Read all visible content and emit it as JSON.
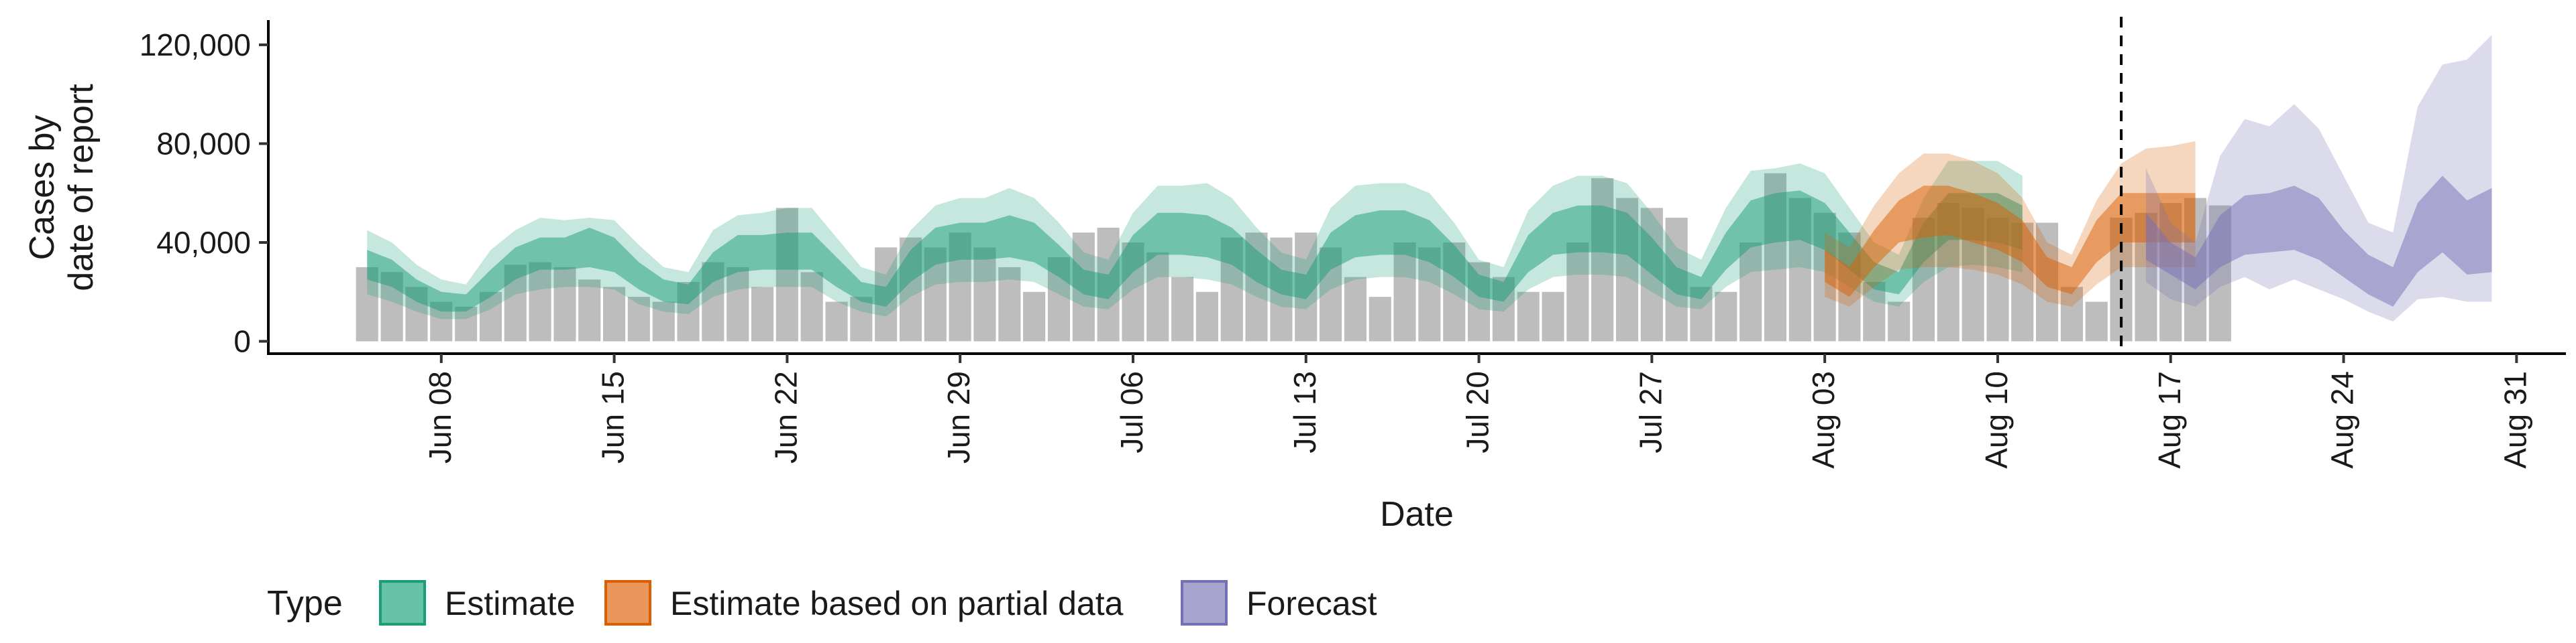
{
  "chart_data": {
    "type": "area",
    "xlabel": "Date",
    "ylabel_lines": [
      "Cases by",
      "date of report"
    ],
    "x_range": [
      "2020-06-01",
      "2020-09-02"
    ],
    "ylim": [
      -5000,
      130000
    ],
    "y_ticks": [
      0,
      40000,
      80000,
      120000
    ],
    "y_tick_labels": [
      "0",
      "40,000",
      "80,000",
      "120,000"
    ],
    "x_ticks": [
      "2020-06-08",
      "2020-06-15",
      "2020-06-22",
      "2020-06-29",
      "2020-07-06",
      "2020-07-13",
      "2020-07-20",
      "2020-07-27",
      "2020-08-03",
      "2020-08-10",
      "2020-08-17",
      "2020-08-24",
      "2020-08-31"
    ],
    "x_tick_labels": [
      "Jun 08",
      "Jun 15",
      "Jun 22",
      "Jun 29",
      "Jul 06",
      "Jul 13",
      "Jul 20",
      "Jul 27",
      "Aug 03",
      "Aug 10",
      "Aug 17",
      "Aug 24",
      "Aug 31"
    ],
    "vline_date": "2020-08-15",
    "grid": false,
    "legend": {
      "title": "Type",
      "position": "bottom",
      "items": [
        {
          "label": "Estimate",
          "fill": "#66c2a5",
          "border": "#1b9e77"
        },
        {
          "label": "Estimate based on partial data",
          "fill": "#e8965a",
          "border": "#d95f02"
        },
        {
          "label": "Forecast",
          "fill": "#a8a4d0",
          "border": "#7570b3"
        }
      ]
    },
    "colors": {
      "bars": "#bdbdbd",
      "Estimate": "#1b9e77",
      "Estimate based on partial data": "#d95f02",
      "Forecast": "#7570b3"
    },
    "reported_cases": {
      "start_date": "2020-06-05",
      "values": [
        30000,
        28000,
        22000,
        16000,
        14000,
        20000,
        31000,
        32000,
        30000,
        25000,
        22000,
        18000,
        16000,
        24000,
        32000,
        30000,
        22000,
        54000,
        28000,
        16000,
        18000,
        38000,
        42000,
        38000,
        44000,
        38000,
        30000,
        20000,
        34000,
        44000,
        46000,
        40000,
        36000,
        26000,
        20000,
        42000,
        44000,
        42000,
        44000,
        38000,
        26000,
        18000,
        40000,
        38000,
        40000,
        32000,
        26000,
        20000,
        20000,
        40000,
        66000,
        58000,
        54000,
        50000,
        22000,
        20000,
        40000,
        68000,
        58000,
        52000,
        44000,
        24000,
        16000,
        50000,
        56000,
        54000,
        50000,
        48000,
        48000,
        22000,
        16000,
        50000,
        52000,
        56000,
        58000,
        55000
      ]
    },
    "series": [
      {
        "name": "Estimate",
        "start_date": "2020-06-05",
        "median": [
          31000,
          27000,
          20000,
          16000,
          15000,
          23000,
          31000,
          35000,
          35000,
          38000,
          35000,
          26000,
          20000,
          19000,
          30000,
          35000,
          35000,
          36000,
          36000,
          28000,
          20000,
          18000,
          30000,
          38000,
          40000,
          40000,
          42000,
          40000,
          32000,
          24000,
          22000,
          35000,
          43000,
          43000,
          42000,
          38000,
          30000,
          24000,
          22000,
          36000,
          42000,
          43000,
          43000,
          40000,
          32000,
          22000,
          20000,
          35000,
          43000,
          45000,
          45000,
          43000,
          34000,
          24000,
          21000,
          36000,
          47000,
          49000,
          50000,
          46000,
          36000,
          26000,
          23000,
          40000,
          50000,
          50000,
          49000,
          45000
        ],
        "inner_lower": [
          25000,
          22000,
          16000,
          12000,
          12000,
          18000,
          25000,
          29000,
          29000,
          30000,
          28000,
          21000,
          16000,
          15000,
          24000,
          28000,
          29000,
          29000,
          29000,
          22000,
          16000,
          14000,
          24000,
          31000,
          33000,
          33000,
          34000,
          32000,
          26000,
          19000,
          17000,
          28000,
          35000,
          35000,
          34000,
          31000,
          24000,
          19000,
          17000,
          29000,
          34000,
          35000,
          35000,
          32000,
          26000,
          18000,
          16000,
          28000,
          35000,
          36000,
          36000,
          35000,
          27000,
          19000,
          17000,
          29000,
          38000,
          40000,
          41000,
          37000,
          29000,
          21000,
          19000,
          32000,
          41000,
          41000,
          40000,
          37000
        ],
        "inner_upper": [
          37000,
          33000,
          25000,
          20000,
          19000,
          29000,
          38000,
          42000,
          42000,
          46000,
          42000,
          32000,
          25000,
          23000,
          36000,
          43000,
          43000,
          44000,
          44000,
          34000,
          24000,
          22000,
          37000,
          46000,
          48000,
          48000,
          51000,
          48000,
          39000,
          29000,
          27000,
          43000,
          52000,
          52000,
          51000,
          46000,
          37000,
          29000,
          27000,
          44000,
          51000,
          53000,
          53000,
          49000,
          39000,
          27000,
          24000,
          43000,
          52000,
          55000,
          55000,
          52000,
          42000,
          30000,
          26000,
          44000,
          57000,
          60000,
          61000,
          56000,
          44000,
          32000,
          28000,
          48000,
          60000,
          60000,
          60000,
          55000
        ],
        "lower": [
          19000,
          16000,
          12000,
          9000,
          9000,
          13000,
          19000,
          21000,
          22000,
          22000,
          21000,
          15000,
          12000,
          11000,
          18000,
          21000,
          22000,
          22000,
          22000,
          16000,
          12000,
          10000,
          18000,
          23000,
          24000,
          24000,
          25000,
          24000,
          19000,
          14000,
          13000,
          21000,
          26000,
          26000,
          25000,
          23000,
          18000,
          14000,
          13000,
          21000,
          25000,
          26000,
          26000,
          24000,
          19000,
          13000,
          12000,
          21000,
          26000,
          27000,
          27000,
          26000,
          20000,
          14000,
          13000,
          22000,
          28000,
          29000,
          30000,
          28000,
          22000,
          16000,
          14000,
          24000,
          30000,
          31000,
          30000,
          28000
        ],
        "upper": [
          45000,
          40000,
          31000,
          25000,
          23000,
          37000,
          45000,
          50000,
          49000,
          50000,
          49000,
          39000,
          30000,
          28000,
          45000,
          51000,
          52000,
          54000,
          54000,
          42000,
          30000,
          27000,
          45000,
          55000,
          58000,
          58000,
          62000,
          58000,
          48000,
          36000,
          33000,
          52000,
          63000,
          63000,
          64000,
          58000,
          46000,
          36000,
          33000,
          54000,
          63000,
          64000,
          64000,
          60000,
          48000,
          33000,
          30000,
          53000,
          63000,
          67000,
          67000,
          64000,
          52000,
          38000,
          33000,
          54000,
          69000,
          70000,
          72000,
          68000,
          54000,
          40000,
          35000,
          58000,
          73000,
          73000,
          73000,
          67000
        ]
      },
      {
        "name": "Estimate based on partial data",
        "start_date": "2020-08-03",
        "median": [
          30000,
          23000,
          37000,
          48000,
          52000,
          52000,
          50000,
          46000,
          40000,
          28000,
          24000,
          40000,
          50000,
          50000,
          50000,
          50000
        ],
        "inner_lower": [
          24000,
          18000,
          30000,
          40000,
          42000,
          43000,
          40000,
          37000,
          32000,
          22000,
          19000,
          32000,
          40000,
          40000,
          40000,
          40000
        ],
        "inner_upper": [
          37000,
          30000,
          45000,
          57000,
          63000,
          63000,
          60000,
          56000,
          49000,
          34000,
          30000,
          49000,
          60000,
          60000,
          60000,
          60000
        ],
        "lower": [
          18000,
          14000,
          22000,
          29000,
          30000,
          30000,
          29000,
          27000,
          23000,
          16000,
          14000,
          23000,
          30000,
          30000,
          30000,
          30000
        ],
        "upper": [
          44000,
          38000,
          55000,
          68000,
          76000,
          76000,
          73000,
          68000,
          58000,
          40000,
          35000,
          57000,
          72000,
          78000,
          79000,
          81000
        ]
      },
      {
        "name": "Forecast",
        "start_date": "2020-08-16",
        "median": [
          42000,
          33000,
          27000,
          40000,
          47000,
          48000,
          50000,
          46000,
          36000,
          27000,
          22000,
          42000,
          52000,
          45000,
          46000
        ],
        "inner_lower": [
          33000,
          27000,
          21000,
          30000,
          35000,
          36000,
          37000,
          33000,
          26000,
          19000,
          14000,
          28000,
          36000,
          27000,
          28000
        ],
        "inner_upper": [
          52000,
          40000,
          34000,
          51000,
          59000,
          60000,
          63000,
          58000,
          45000,
          35000,
          30000,
          56000,
          67000,
          57000,
          62000
        ],
        "lower": [
          24000,
          17000,
          14000,
          22000,
          26000,
          21000,
          25000,
          21000,
          17000,
          12000,
          8000,
          17000,
          18000,
          16000,
          16000
        ],
        "upper": [
          70000,
          48000,
          40000,
          75000,
          90000,
          87000,
          96000,
          86000,
          67000,
          48000,
          44000,
          95000,
          112000,
          114000,
          124000
        ]
      }
    ]
  }
}
